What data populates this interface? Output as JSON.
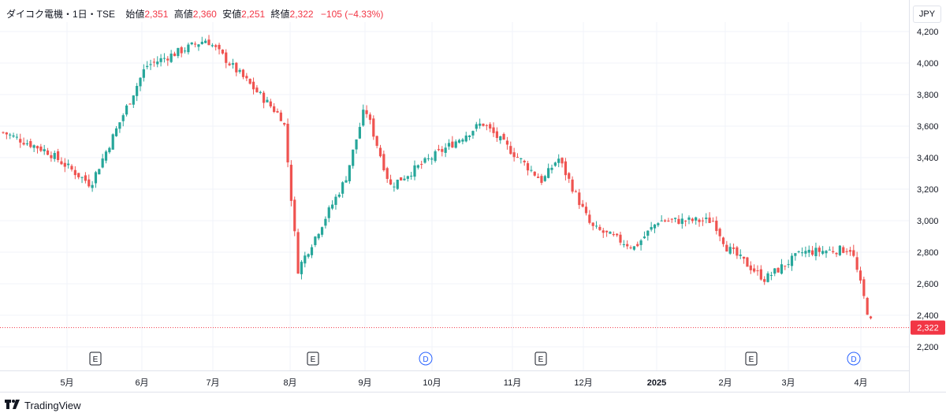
{
  "legend": {
    "symbol": "ダイコク電機・1日・TSE",
    "open_label": "始値",
    "open": "2,351",
    "high_label": "高値",
    "high": "2,360",
    "low_label": "安値",
    "low": "2,251",
    "close_label": "終値",
    "close": "2,322",
    "change": "−105 (−4.33%)"
  },
  "currency": "JPY",
  "last_price_label": "2,322",
  "footer": {
    "brand": "TradingView",
    "logo": "tradingview-logo-icon"
  },
  "colors": {
    "up": "#26a69a",
    "down": "#ef5350",
    "event_earnings": "#131722",
    "event_dividend": "#2962ff",
    "last_price": "#f23645"
  },
  "chart_data": {
    "type": "candlestick",
    "y_axis": {
      "ticks": [
        "2,200",
        "2,400",
        "2,600",
        "2,800",
        "3,000",
        "3,200",
        "3,400",
        "3,600",
        "3,800",
        "4,000",
        "4,200"
      ],
      "ylim": [
        2130,
        4260
      ]
    },
    "x_axis": {
      "ticks": [
        "5月",
        "6月",
        "7月",
        "8月",
        "9月",
        "10月",
        "11月",
        "12月",
        "2025",
        "2月",
        "3月",
        "4月"
      ]
    },
    "last_price": 2322,
    "grid": true,
    "key_points": [
      {
        "x": "2024-04 start",
        "close": 3560
      },
      {
        "x": "2024-05 early",
        "close": 3440
      },
      {
        "x": "2024-05 mid",
        "close": 3230
      },
      {
        "x": "2024-06 mid",
        "close": 3980
      },
      {
        "x": "2024-07 early",
        "close": 4150
      },
      {
        "x": "2024-07 end",
        "close": 3640
      },
      {
        "x": "2024-08 early",
        "close": 2690
      },
      {
        "x": "2024-08 mid",
        "close": 3260
      },
      {
        "x": "2024-09 early",
        "close": 3720
      },
      {
        "x": "2024-09 mid",
        "close": 3220
      },
      {
        "x": "2024-10 mid",
        "close": 3620
      },
      {
        "x": "2024-11 mid",
        "close": 3250
      },
      {
        "x": "2024-11 end",
        "close": 3400
      },
      {
        "x": "2024-12 mid",
        "close": 2960
      },
      {
        "x": "2024-12 end",
        "close": 2830
      },
      {
        "x": "2025-01 early",
        "close": 3000
      },
      {
        "x": "2025-01 end",
        "close": 3000
      },
      {
        "x": "2025-02 early",
        "close": 2830
      },
      {
        "x": "2025-02 end",
        "close": 2630
      },
      {
        "x": "2025-03 mid",
        "close": 2800
      },
      {
        "x": "2025-03 end",
        "close": 2820
      },
      {
        "x": "2025-04 early",
        "close": 2430
      },
      {
        "x": "2025-04 last",
        "close": 2322
      }
    ],
    "events": [
      {
        "type": "E",
        "x": "2024-05 mid"
      },
      {
        "type": "E",
        "x": "2024-08 early"
      },
      {
        "type": "D",
        "x": "2024-09 end"
      },
      {
        "type": "E",
        "x": "2024-11 mid"
      },
      {
        "type": "E",
        "x": "2025-02 mid"
      },
      {
        "type": "D",
        "x": "2025-03 end"
      }
    ]
  }
}
